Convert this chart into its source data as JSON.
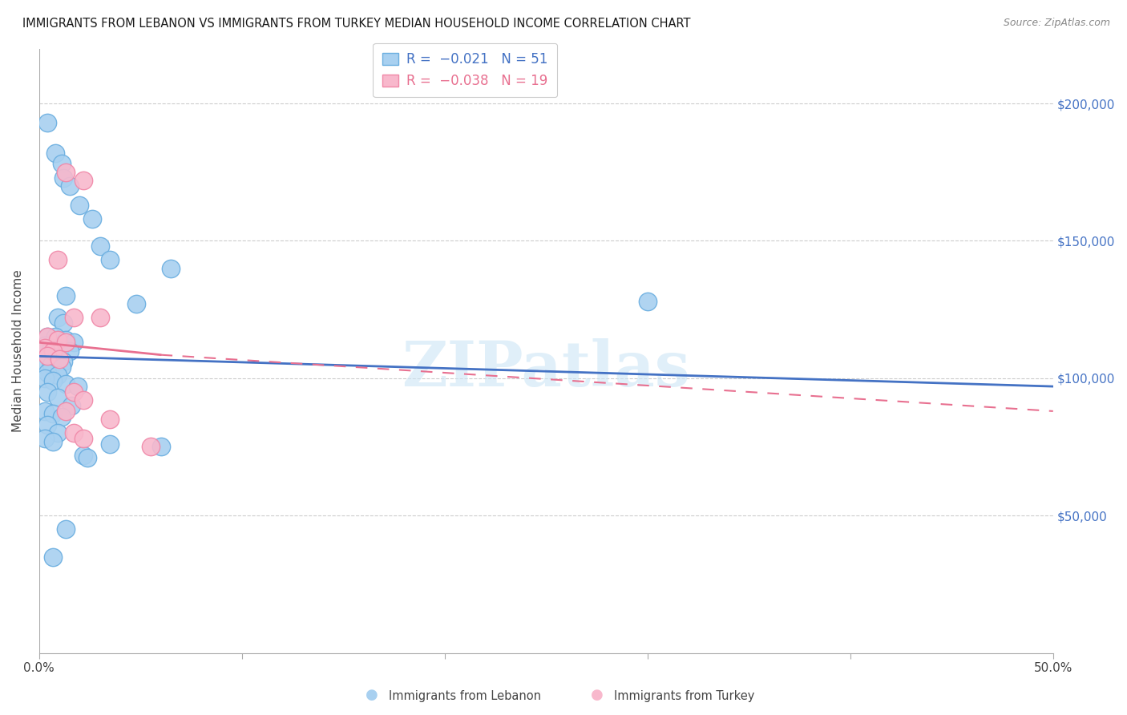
{
  "title": "IMMIGRANTS FROM LEBANON VS IMMIGRANTS FROM TURKEY MEDIAN HOUSEHOLD INCOME CORRELATION CHART",
  "source": "Source: ZipAtlas.com",
  "ylabel": "Median Household Income",
  "ytick_labels": [
    "$50,000",
    "$100,000",
    "$150,000",
    "$200,000"
  ],
  "ytick_values": [
    50000,
    100000,
    150000,
    200000
  ],
  "watermark": "ZIPatlas",
  "lebanon_color": "#a8d0f0",
  "turkey_color": "#f8b8cc",
  "lebanon_edge": "#6aaee0",
  "turkey_edge": "#f088a8",
  "lebanon_scatter": [
    [
      0.4,
      193000
    ],
    [
      0.8,
      182000
    ],
    [
      1.1,
      178000
    ],
    [
      1.2,
      173000
    ],
    [
      1.5,
      170000
    ],
    [
      2.0,
      163000
    ],
    [
      2.6,
      158000
    ],
    [
      3.0,
      148000
    ],
    [
      3.5,
      143000
    ],
    [
      6.5,
      140000
    ],
    [
      1.3,
      130000
    ],
    [
      4.8,
      127000
    ],
    [
      0.9,
      122000
    ],
    [
      1.2,
      120000
    ],
    [
      0.4,
      115000
    ],
    [
      0.8,
      115000
    ],
    [
      1.3,
      114000
    ],
    [
      1.7,
      113000
    ],
    [
      0.3,
      112000
    ],
    [
      0.6,
      111000
    ],
    [
      1.0,
      110000
    ],
    [
      1.5,
      110000
    ],
    [
      0.4,
      108000
    ],
    [
      0.8,
      107000
    ],
    [
      1.2,
      106000
    ],
    [
      0.3,
      105000
    ],
    [
      0.6,
      105000
    ],
    [
      1.1,
      104000
    ],
    [
      0.4,
      102000
    ],
    [
      0.9,
      101000
    ],
    [
      0.3,
      100000
    ],
    [
      0.7,
      99000
    ],
    [
      1.3,
      98000
    ],
    [
      1.9,
      97000
    ],
    [
      0.4,
      95000
    ],
    [
      0.9,
      93000
    ],
    [
      1.6,
      90000
    ],
    [
      0.3,
      88000
    ],
    [
      0.7,
      87000
    ],
    [
      1.1,
      86000
    ],
    [
      0.4,
      83000
    ],
    [
      0.9,
      80000
    ],
    [
      0.3,
      78000
    ],
    [
      0.7,
      77000
    ],
    [
      3.5,
      76000
    ],
    [
      6.0,
      75000
    ],
    [
      2.2,
      72000
    ],
    [
      2.4,
      71000
    ],
    [
      1.3,
      45000
    ],
    [
      0.7,
      35000
    ],
    [
      30.0,
      128000
    ]
  ],
  "turkey_scatter": [
    [
      1.3,
      175000
    ],
    [
      2.2,
      172000
    ],
    [
      0.9,
      143000
    ],
    [
      1.7,
      122000
    ],
    [
      0.4,
      115000
    ],
    [
      0.9,
      114000
    ],
    [
      1.3,
      113000
    ],
    [
      0.3,
      111000
    ],
    [
      0.7,
      110000
    ],
    [
      0.4,
      108000
    ],
    [
      1.0,
      107000
    ],
    [
      3.0,
      122000
    ],
    [
      1.7,
      95000
    ],
    [
      2.2,
      92000
    ],
    [
      1.3,
      88000
    ],
    [
      3.5,
      85000
    ],
    [
      1.7,
      80000
    ],
    [
      2.2,
      78000
    ],
    [
      5.5,
      75000
    ]
  ],
  "xlim_pct": [
    0,
    50
  ],
  "ylim": [
    0,
    220000
  ],
  "blue_line": {
    "x": [
      0,
      50
    ],
    "y": [
      108000,
      97000
    ]
  },
  "pink_line_solid": {
    "x": [
      0,
      6
    ],
    "y": [
      113000,
      108500
    ]
  },
  "pink_line_dash": {
    "x": [
      6,
      50
    ],
    "y": [
      108500,
      88000
    ]
  }
}
